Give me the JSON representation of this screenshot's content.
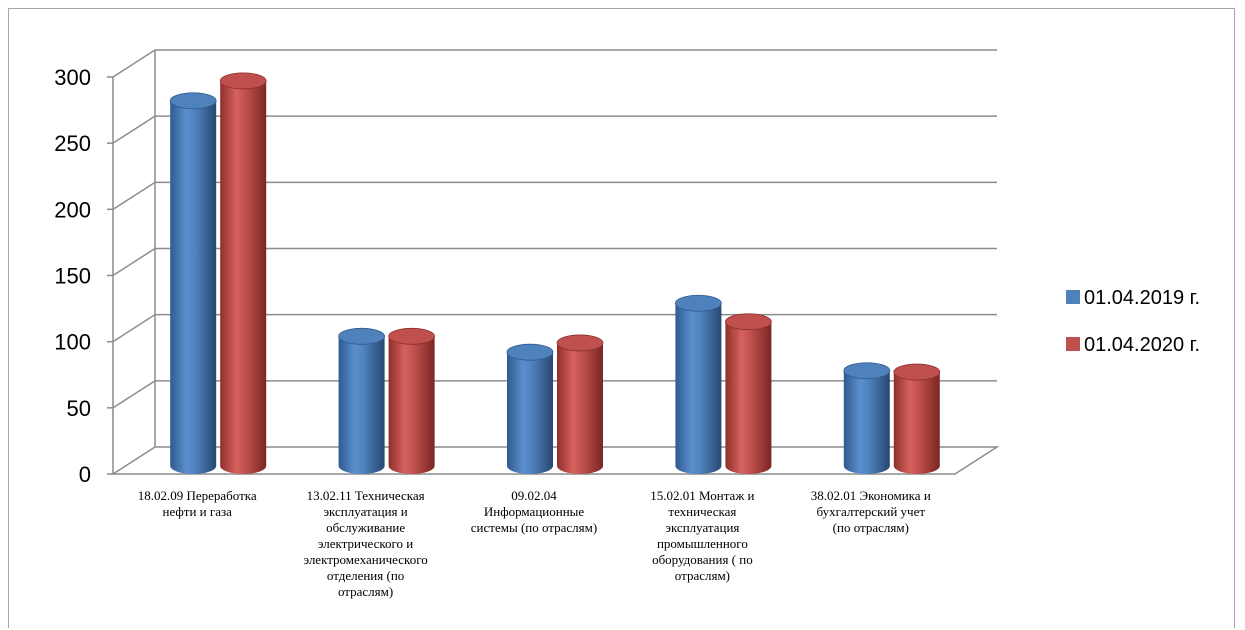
{
  "chart_data": {
    "type": "bar",
    "style": "3d-cylinder",
    "categories": [
      [
        "18.02.09 Переработка",
        "нефти и газа"
      ],
      [
        "13.02.11 Техническая",
        "эксплуатация и",
        "обслуживание",
        "электрического и",
        "электромеханического",
        "отделения (по",
        "отраслям)"
      ],
      [
        "09.02.04",
        "Информационные",
        "системы (по отраслям)"
      ],
      [
        "15.02.01 Монтаж и",
        "техническая",
        "эксплуатация",
        "промышленного",
        "оборудования ( по",
        "отраслям)"
      ],
      [
        "38.02.01 Экономика и",
        "бухгалтерский учет",
        "(по отраслям)"
      ]
    ],
    "series": [
      {
        "name": "01.04.2019 г.",
        "color": "#4f81bd",
        "values": [
          276,
          98,
          86,
          123,
          72
        ]
      },
      {
        "name": "01.04.2020 г.",
        "color": "#c0504d",
        "values": [
          291,
          98,
          93,
          109,
          71
        ]
      }
    ],
    "ylim": [
      0,
      300
    ],
    "yticks": [
      0,
      50,
      100,
      150,
      200,
      250,
      300
    ],
    "grid": true,
    "legend": "right"
  }
}
